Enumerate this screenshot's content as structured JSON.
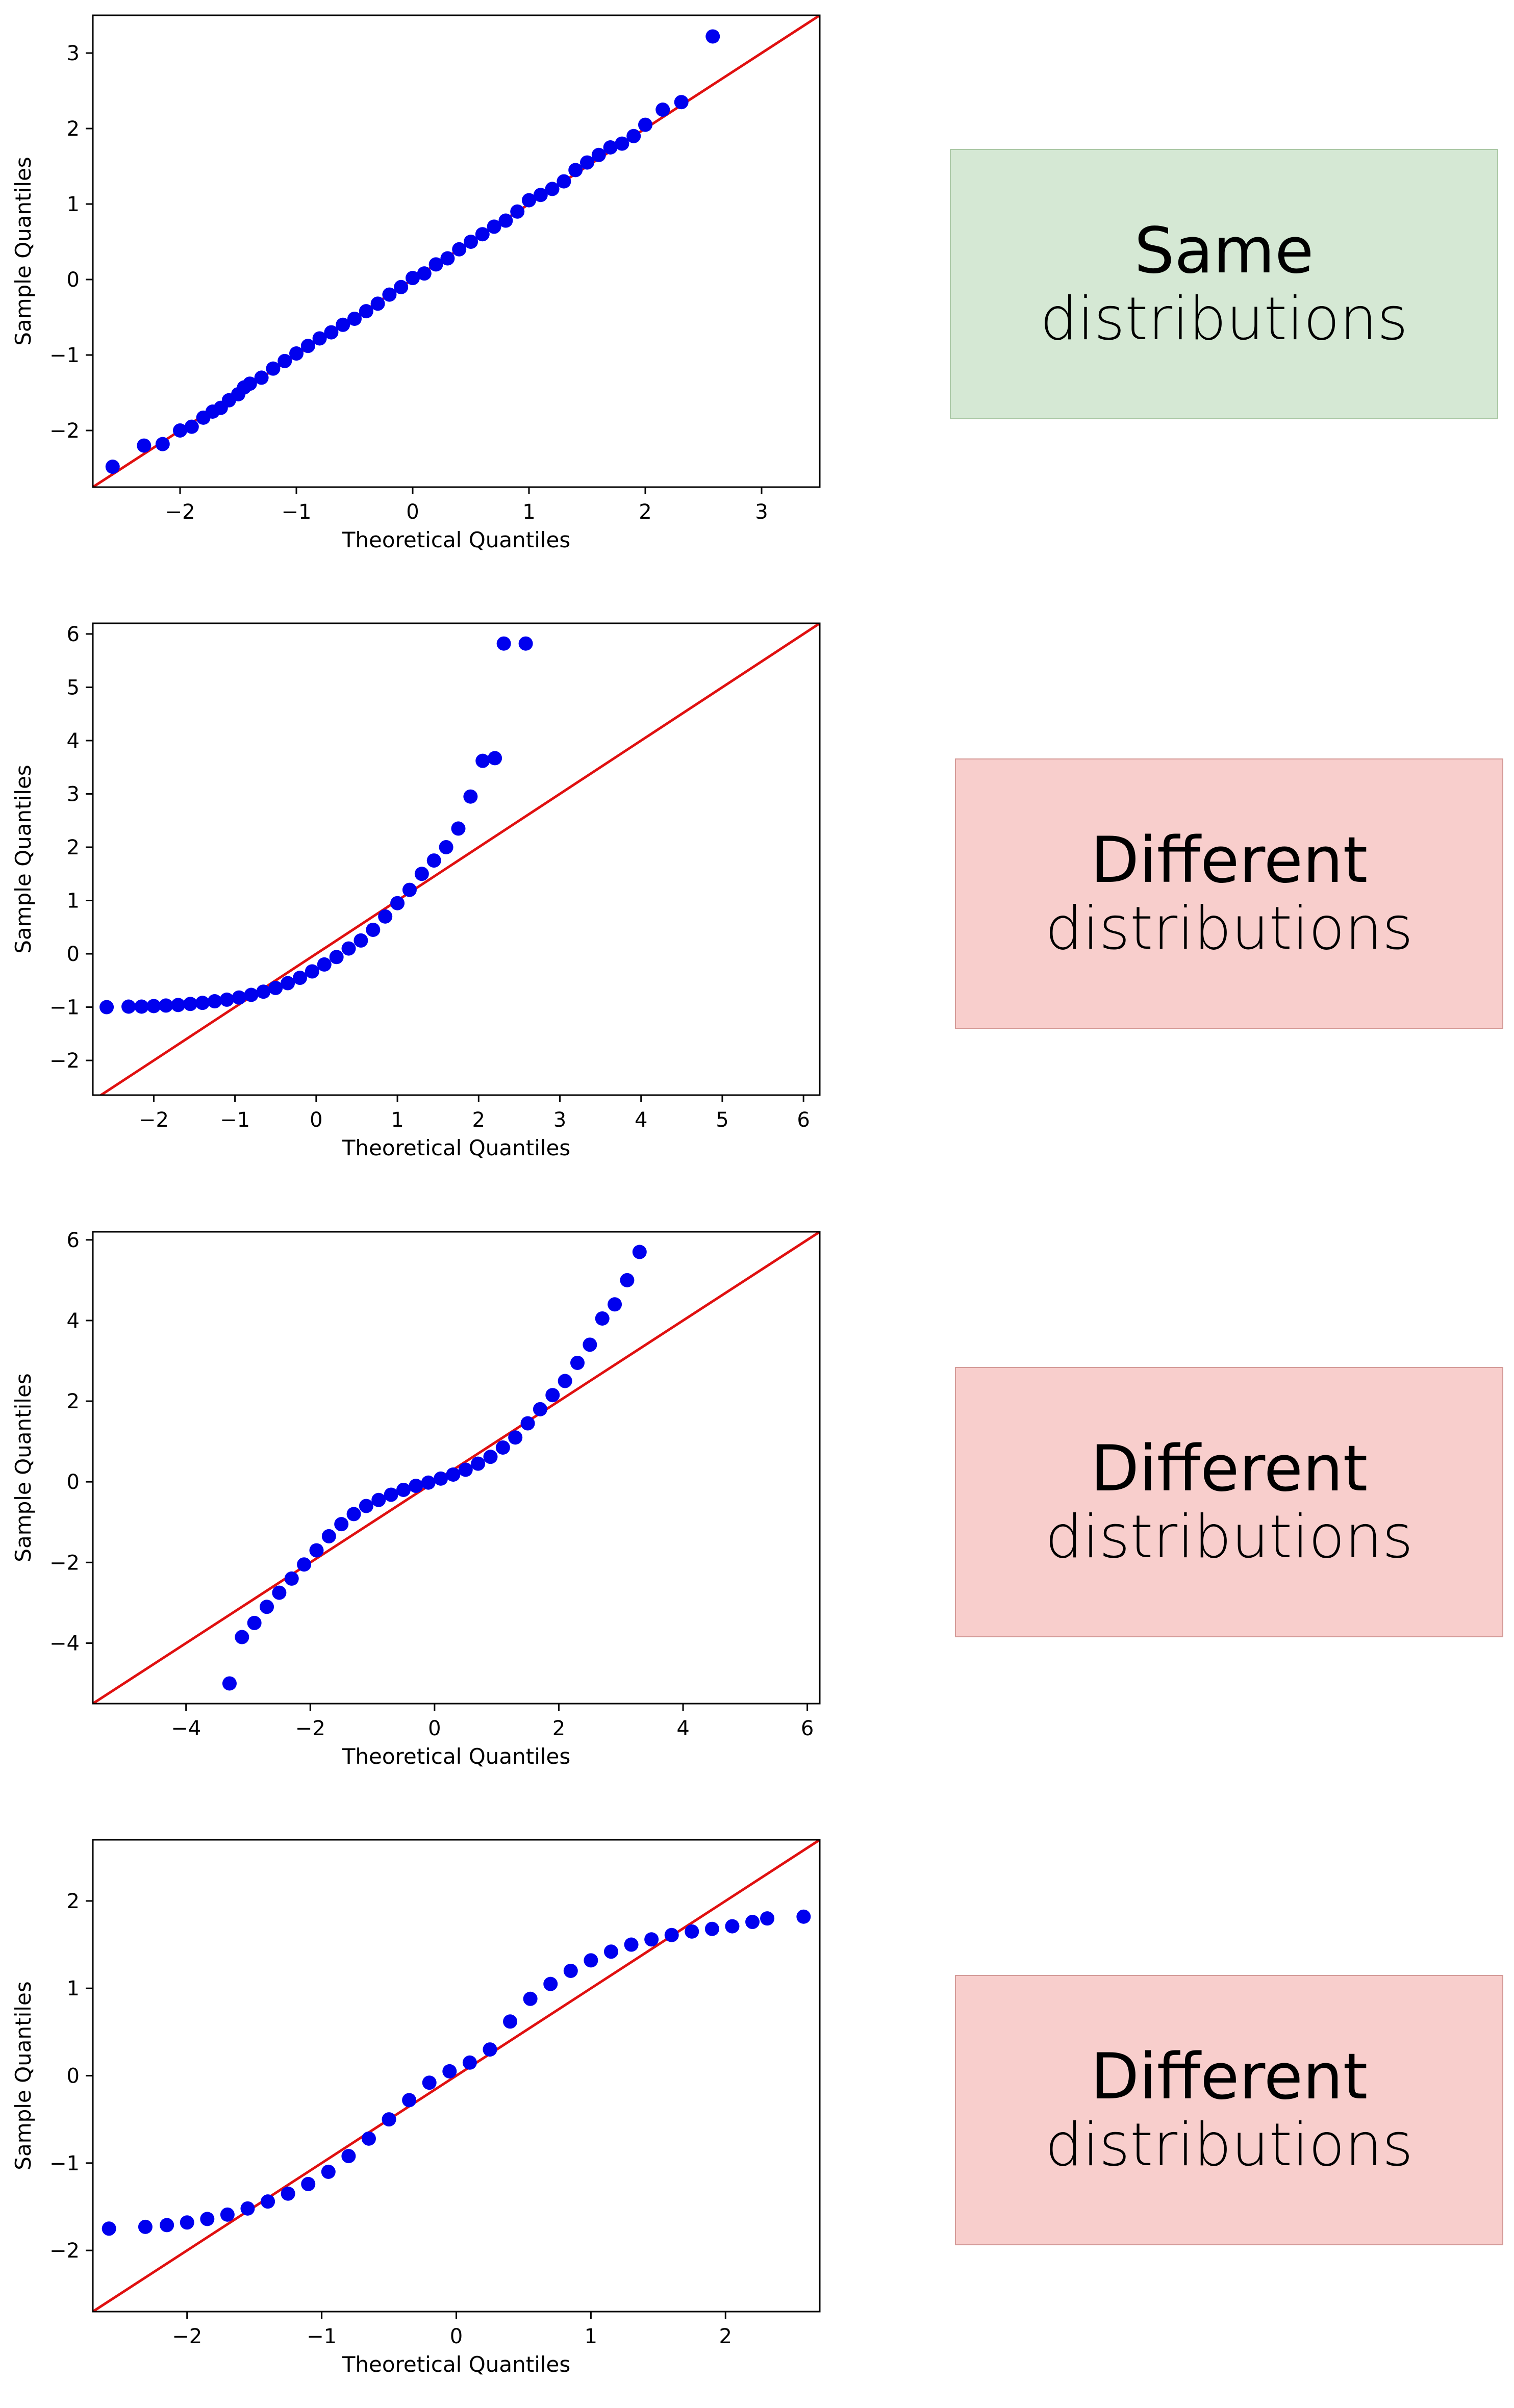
{
  "colors": {
    "points": "#0000ee",
    "reference_line": "#e01010",
    "same_fill": "#d5e8d4",
    "same_border": "#a9c7a4",
    "diff_fill": "#f8cecc",
    "diff_border": "#d49a97"
  },
  "labels": [
    {
      "title": "Same",
      "subtitle": "distributions",
      "kind": "same"
    },
    {
      "title": "Different",
      "subtitle": "distributions",
      "kind": "different"
    },
    {
      "title": "Different",
      "subtitle": "distributions",
      "kind": "different"
    },
    {
      "title": "Different",
      "subtitle": "distributions",
      "kind": "different"
    }
  ],
  "chart_data": [
    {
      "type": "scatter",
      "title": "",
      "xlabel": "Theoretical Quantiles",
      "ylabel": "Sample Quantiles",
      "xlim": [
        -2.75,
        3.5
      ],
      "ylim": [
        -2.75,
        3.5
      ],
      "xticks": [
        -2,
        -1,
        0,
        1,
        2,
        3
      ],
      "yticks": [
        -2,
        -1,
        0,
        1,
        2,
        3
      ],
      "reference_line": "y = x",
      "grid": false,
      "series": [
        {
          "x": [
            -2.58,
            -2.31,
            -2.15,
            -2.0,
            -1.9,
            -1.8,
            -1.72,
            -1.65,
            -1.58,
            -1.5,
            -1.45,
            -1.4,
            -1.3,
            -1.2,
            -1.1,
            -1.0,
            -0.9,
            -0.8,
            -0.7,
            -0.6,
            -0.5,
            -0.4,
            -0.3,
            -0.2,
            -0.1,
            0.0,
            0.1,
            0.2,
            0.3,
            0.4,
            0.5,
            0.6,
            0.7,
            0.8,
            0.9,
            1.0,
            1.1,
            1.2,
            1.3,
            1.4,
            1.5,
            1.6,
            1.7,
            1.8,
            1.9,
            2.0,
            2.15,
            2.31,
            2.58
          ],
          "y": [
            -2.48,
            -2.2,
            -2.18,
            -2.0,
            -1.95,
            -1.83,
            -1.75,
            -1.7,
            -1.6,
            -1.52,
            -1.43,
            -1.38,
            -1.3,
            -1.18,
            -1.08,
            -0.98,
            -0.88,
            -0.78,
            -0.7,
            -0.6,
            -0.52,
            -0.42,
            -0.32,
            -0.2,
            -0.1,
            0.02,
            0.08,
            0.2,
            0.28,
            0.4,
            0.5,
            0.6,
            0.7,
            0.78,
            0.9,
            1.05,
            1.12,
            1.2,
            1.3,
            1.45,
            1.55,
            1.65,
            1.75,
            1.8,
            1.9,
            2.05,
            2.25,
            2.35,
            3.22
          ]
        }
      ]
    },
    {
      "type": "scatter",
      "title": "",
      "xlabel": "Theoretical Quantiles",
      "ylabel": "Sample Quantiles",
      "xlim": [
        -2.75,
        6.2
      ],
      "ylim": [
        -2.65,
        6.2
      ],
      "xticks": [
        -2,
        -1,
        0,
        1,
        2,
        3,
        4,
        5,
        6
      ],
      "yticks": [
        -2,
        -1,
        0,
        1,
        2,
        3,
        4,
        5,
        6
      ],
      "reference_line": "y = x",
      "grid": false,
      "series": [
        {
          "x": [
            -2.58,
            -2.31,
            -2.15,
            -2.0,
            -1.85,
            -1.7,
            -1.55,
            -1.4,
            -1.25,
            -1.1,
            -0.95,
            -0.8,
            -0.65,
            -0.5,
            -0.35,
            -0.2,
            -0.05,
            0.1,
            0.25,
            0.4,
            0.55,
            0.7,
            0.85,
            1.0,
            1.15,
            1.3,
            1.45,
            1.6,
            1.75,
            1.9,
            2.05,
            2.2,
            2.31,
            2.58
          ],
          "y": [
            -1.0,
            -0.99,
            -0.99,
            -0.98,
            -0.97,
            -0.96,
            -0.94,
            -0.92,
            -0.89,
            -0.86,
            -0.82,
            -0.77,
            -0.71,
            -0.64,
            -0.55,
            -0.45,
            -0.33,
            -0.2,
            -0.06,
            0.1,
            0.25,
            0.45,
            0.7,
            0.95,
            1.2,
            1.5,
            1.75,
            2.0,
            2.35,
            2.95,
            3.62,
            3.67,
            5.82,
            5.82
          ]
        }
      ]
    },
    {
      "type": "scatter",
      "title": "",
      "xlabel": "Theoretical Quantiles",
      "ylabel": "Sample Quantiles",
      "xlim": [
        -5.5,
        6.2
      ],
      "ylim": [
        -5.5,
        6.2
      ],
      "xticks": [
        -4,
        -2,
        0,
        2,
        4,
        6
      ],
      "yticks": [
        -4,
        -2,
        0,
        2,
        4,
        6
      ],
      "reference_line": "y = x",
      "grid": false,
      "series": [
        {
          "x": [
            -3.3,
            -3.1,
            -2.9,
            -2.7,
            -2.5,
            -2.3,
            -2.1,
            -1.9,
            -1.7,
            -1.5,
            -1.3,
            -1.1,
            -0.9,
            -0.7,
            -0.5,
            -0.3,
            -0.1,
            0.1,
            0.3,
            0.5,
            0.7,
            0.9,
            1.1,
            1.3,
            1.5,
            1.7,
            1.9,
            2.1,
            2.3,
            2.5,
            2.7,
            2.9,
            3.1,
            3.3
          ],
          "y": [
            -5.0,
            -3.85,
            -3.5,
            -3.1,
            -2.75,
            -2.4,
            -2.05,
            -1.7,
            -1.35,
            -1.05,
            -0.8,
            -0.6,
            -0.45,
            -0.32,
            -0.2,
            -0.1,
            -0.02,
            0.08,
            0.18,
            0.3,
            0.45,
            0.62,
            0.85,
            1.1,
            1.45,
            1.8,
            2.15,
            2.5,
            2.95,
            3.4,
            4.05,
            4.4,
            5.0,
            5.7
          ]
        }
      ]
    },
    {
      "type": "scatter",
      "title": "",
      "xlabel": "Theoretical Quantiles",
      "ylabel": "Sample Quantiles",
      "xlim": [
        -2.7,
        2.7
      ],
      "ylim": [
        -2.7,
        2.7
      ],
      "xticks": [
        -2,
        -1,
        0,
        1,
        2
      ],
      "yticks": [
        -2,
        -1,
        0,
        1,
        2
      ],
      "reference_line": "y = x",
      "grid": false,
      "series": [
        {
          "x": [
            -2.58,
            -2.31,
            -2.15,
            -2.0,
            -1.85,
            -1.7,
            -1.55,
            -1.4,
            -1.25,
            -1.1,
            -0.95,
            -0.8,
            -0.65,
            -0.5,
            -0.35,
            -0.2,
            -0.05,
            0.1,
            0.25,
            0.4,
            0.55,
            0.7,
            0.85,
            1.0,
            1.15,
            1.3,
            1.45,
            1.6,
            1.75,
            1.9,
            2.05,
            2.2,
            2.31,
            2.58
          ],
          "y": [
            -1.75,
            -1.73,
            -1.71,
            -1.68,
            -1.64,
            -1.59,
            -1.52,
            -1.44,
            -1.35,
            -1.24,
            -1.1,
            -0.92,
            -0.72,
            -0.5,
            -0.28,
            -0.08,
            0.05,
            0.15,
            0.3,
            0.62,
            0.88,
            1.05,
            1.2,
            1.32,
            1.42,
            1.5,
            1.56,
            1.61,
            1.65,
            1.68,
            1.71,
            1.76,
            1.8,
            1.82
          ]
        }
      ]
    }
  ]
}
